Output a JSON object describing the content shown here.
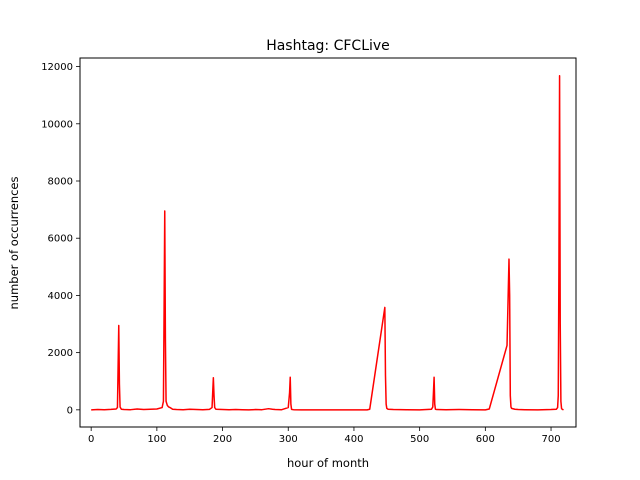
{
  "chart_data": {
    "type": "line",
    "title": "Hashtag: CFCLive",
    "xlabel": "hour of month",
    "ylabel": "number of occurrences",
    "xlim": [
      -17,
      738
    ],
    "ylim": [
      -600,
      12300
    ],
    "xticks": [
      0,
      100,
      200,
      300,
      400,
      500,
      600,
      700
    ],
    "yticks": [
      0,
      2000,
      4000,
      6000,
      8000,
      10000,
      12000
    ],
    "grid": false,
    "series": [
      {
        "color": "#ff0000",
        "x": [
          0,
          10,
          20,
          30,
          38,
          40,
          41,
          42,
          43,
          44,
          46,
          50,
          60,
          70,
          80,
          90,
          100,
          108,
          110,
          111,
          112,
          113,
          114,
          116,
          118,
          120,
          124,
          130,
          140,
          150,
          160,
          170,
          180,
          184,
          185,
          186,
          187,
          188,
          190,
          200,
          210,
          220,
          230,
          240,
          250,
          260,
          270,
          276,
          280,
          290,
          300,
          302,
          303,
          304,
          305,
          306,
          308,
          320,
          340,
          360,
          380,
          400,
          420,
          424,
          447,
          448,
          449,
          450,
          452,
          460,
          480,
          500,
          518,
          520,
          521,
          522,
          523,
          524,
          526,
          540,
          560,
          580,
          600,
          606,
          633,
          636,
          637,
          638,
          639,
          640,
          645,
          650,
          660,
          680,
          700,
          708,
          710,
          711,
          712,
          713,
          714,
          715,
          716,
          717,
          719
        ],
        "y": [
          0,
          10,
          5,
          15,
          30,
          80,
          1500,
          2950,
          900,
          100,
          20,
          10,
          5,
          30,
          10,
          20,
          30,
          80,
          300,
          3500,
          6950,
          2500,
          300,
          150,
          100,
          80,
          20,
          10,
          5,
          20,
          10,
          5,
          15,
          80,
          600,
          1120,
          500,
          80,
          20,
          10,
          5,
          10,
          5,
          0,
          10,
          5,
          40,
          20,
          10,
          5,
          80,
          600,
          1140,
          200,
          20,
          10,
          5,
          0,
          0,
          0,
          0,
          0,
          0,
          20,
          3580,
          1200,
          200,
          50,
          20,
          10,
          5,
          0,
          20,
          100,
          600,
          1140,
          200,
          20,
          10,
          5,
          10,
          5,
          0,
          30,
          2250,
          5270,
          4000,
          500,
          100,
          50,
          20,
          10,
          5,
          0,
          10,
          20,
          80,
          500,
          5000,
          11680,
          3000,
          300,
          50,
          20,
          0
        ]
      }
    ]
  }
}
